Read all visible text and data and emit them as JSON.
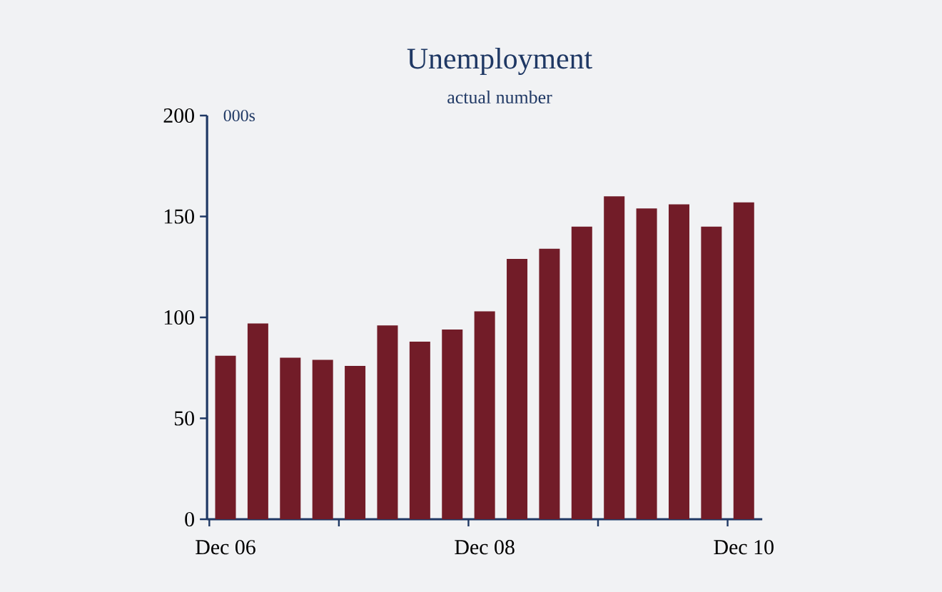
{
  "chart_data": {
    "type": "bar",
    "title": "Unemployment",
    "subtitle": "actual number",
    "annotations": [
      "000s"
    ],
    "categories": [
      "Dec 06",
      null,
      null,
      null,
      null,
      null,
      null,
      null,
      "Dec 08",
      null,
      null,
      null,
      null,
      null,
      null,
      null,
      "Dec 10"
    ],
    "values": [
      81,
      97,
      80,
      79,
      76,
      96,
      88,
      94,
      103,
      129,
      134,
      145,
      160,
      154,
      156,
      145,
      157
    ],
    "color": "#721c28",
    "ylim": [
      0,
      200
    ],
    "yticks": [
      0,
      50,
      100,
      150,
      200
    ],
    "grid": false
  }
}
